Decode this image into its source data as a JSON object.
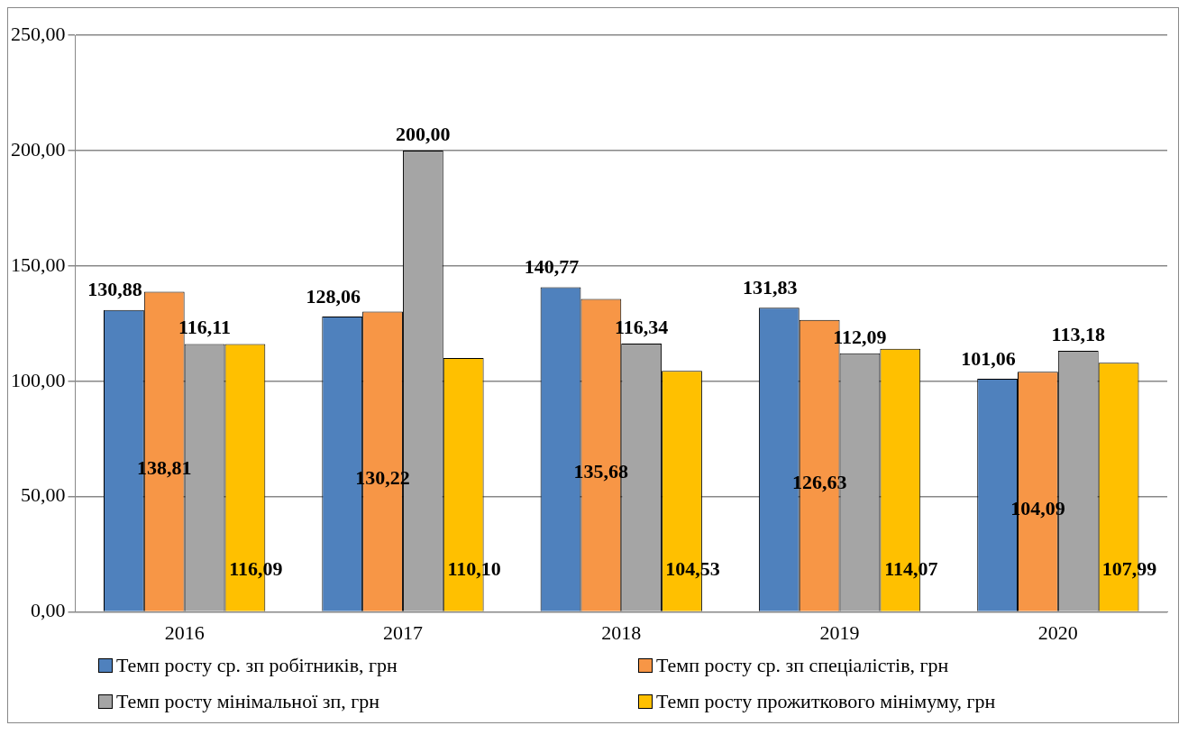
{
  "chart_data": {
    "type": "bar",
    "categories": [
      "2016",
      "2017",
      "2018",
      "2019",
      "2020"
    ],
    "series": [
      {
        "name": "Темп росту ср. зп  робітників, грн",
        "color": "#4f81bd",
        "values": [
          130.88,
          128.06,
          140.77,
          131.83,
          101.06
        ],
        "value_labels": [
          "130,88",
          "128,06",
          "140,77",
          "131,83",
          "101,06"
        ]
      },
      {
        "name": "Темп росту ср. зп  спеціалістів, грн",
        "color": "#f79646",
        "values": [
          138.81,
          130.22,
          135.68,
          126.63,
          104.09
        ],
        "value_labels": [
          "138,81",
          "130,22",
          "135,68",
          "126,63",
          "104,09"
        ]
      },
      {
        "name": "Темп росту мінімальної зп, грн",
        "color": "#a5a5a5",
        "values": [
          116.11,
          200.0,
          116.34,
          112.09,
          113.18
        ],
        "value_labels": [
          "116,11",
          "200,00",
          "116,34",
          "112,09",
          "113,18"
        ]
      },
      {
        "name": "Темп росту прожиткового мінімуму, грн",
        "color": "#ffc000",
        "values": [
          116.09,
          110.1,
          104.53,
          114.07,
          107.99
        ],
        "value_labels": [
          "116,09",
          "110,10",
          "104,53",
          "114,07",
          "107,99"
        ]
      }
    ],
    "ylim": [
      0,
      250
    ],
    "yticks": [
      {
        "value": 0,
        "label": "0,00"
      },
      {
        "value": 50,
        "label": "50,00"
      },
      {
        "value": 100,
        "label": "100,00"
      },
      {
        "value": 150,
        "label": "150,00"
      },
      {
        "value": 200,
        "label": "200,00"
      },
      {
        "value": 250,
        "label": "250,00"
      }
    ],
    "grid": "y",
    "legend": "bottom"
  }
}
